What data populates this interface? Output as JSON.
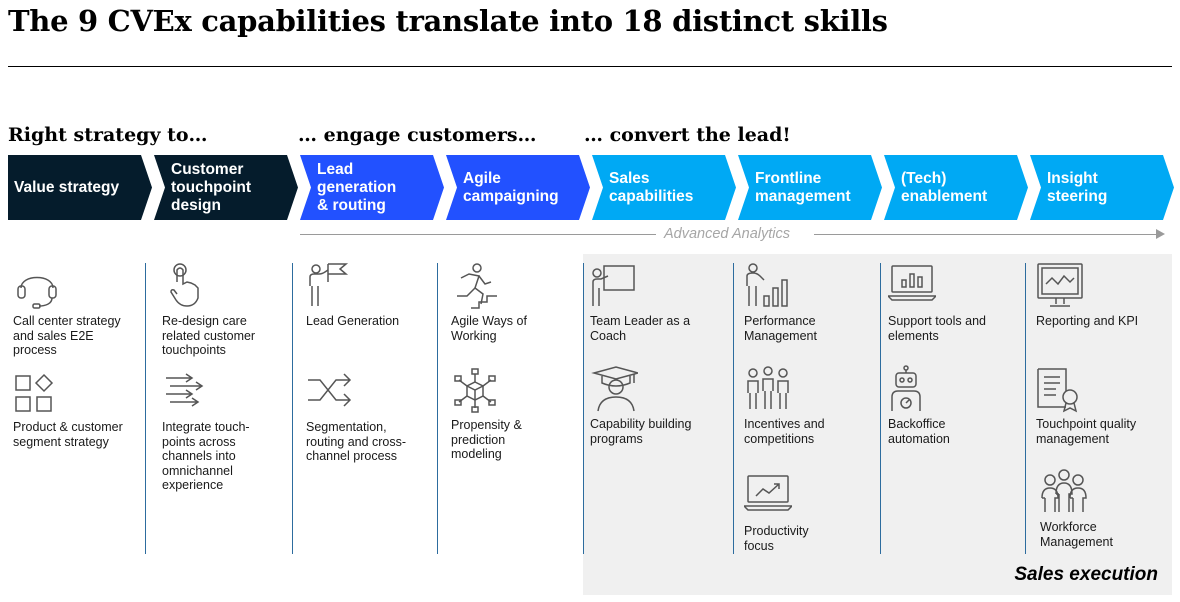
{
  "title": "The 9 CVEx capabilities translate into 18 distinct skills",
  "phases": [
    "Right strategy to…",
    "… engage customers…",
    "… convert the lead!"
  ],
  "capabilities": [
    {
      "label": "Value strategy",
      "color": "#051c2c"
    },
    {
      "label": "Customer\ntouchpoint\ndesign",
      "color": "#051c2c"
    },
    {
      "label": "Lead\ngeneration\n& routing",
      "color": "#2251ff"
    },
    {
      "label": "Agile\ncampaigning",
      "color": "#2251ff"
    },
    {
      "label": "Sales\ncapabilities",
      "color": "#00a9f4"
    },
    {
      "label": "Frontline\nmanagement",
      "color": "#00a9f4"
    },
    {
      "label": "(Tech)\nenablement",
      "color": "#00a9f4"
    },
    {
      "label": "Insight\nsteering",
      "color": "#00a9f4"
    }
  ],
  "advanced_analytics": "Advanced Analytics",
  "sales_execution": "Sales execution",
  "skills": [
    {
      "icon": "headset-icon",
      "label": "Call center strategy\nand sales E2E\nprocess"
    },
    {
      "icon": "shapes-icon",
      "label": "Product & customer\nsegment strategy"
    },
    {
      "icon": "hand-pointer-icon",
      "label": "Re-design care\nrelated customer\ntouchpoints"
    },
    {
      "icon": "channels-arrows-icon",
      "label": "Integrate touch-\npoints across\nchannels into\nomnichannel\nexperience"
    },
    {
      "icon": "person-flag-icon",
      "label": "Lead Generation"
    },
    {
      "icon": "shuffle-icon",
      "label": "Segmentation,\nrouting and cross-\nchannel process"
    },
    {
      "icon": "runner-stairs-icon",
      "label": "Agile Ways of\nWorking"
    },
    {
      "icon": "network-cube-icon",
      "label": "Propensity &\nprediction\nmodeling"
    },
    {
      "icon": "presenter-board-icon",
      "label": "Team Leader as a\nCoach"
    },
    {
      "icon": "graduate-icon",
      "label": "Capability building\nprograms"
    },
    {
      "icon": "person-bar-chart-icon",
      "label": "Performance\nManagement"
    },
    {
      "icon": "group-people-icon",
      "label": "Incentives and\ncompetitions"
    },
    {
      "icon": "laptop-chart-icon",
      "label": "Productivity\nfocus"
    },
    {
      "icon": "laptop-bars-icon",
      "label": "Support tools and\nelements"
    },
    {
      "icon": "robot-icon",
      "label": "Backoffice\nautomation"
    },
    {
      "icon": "monitor-line-chart-icon",
      "label": "Reporting and KPI"
    },
    {
      "icon": "certificate-icon",
      "label": "Touchpoint quality\nmanagement"
    },
    {
      "icon": "workforce-icon",
      "label": "Workforce\nManagement"
    }
  ]
}
